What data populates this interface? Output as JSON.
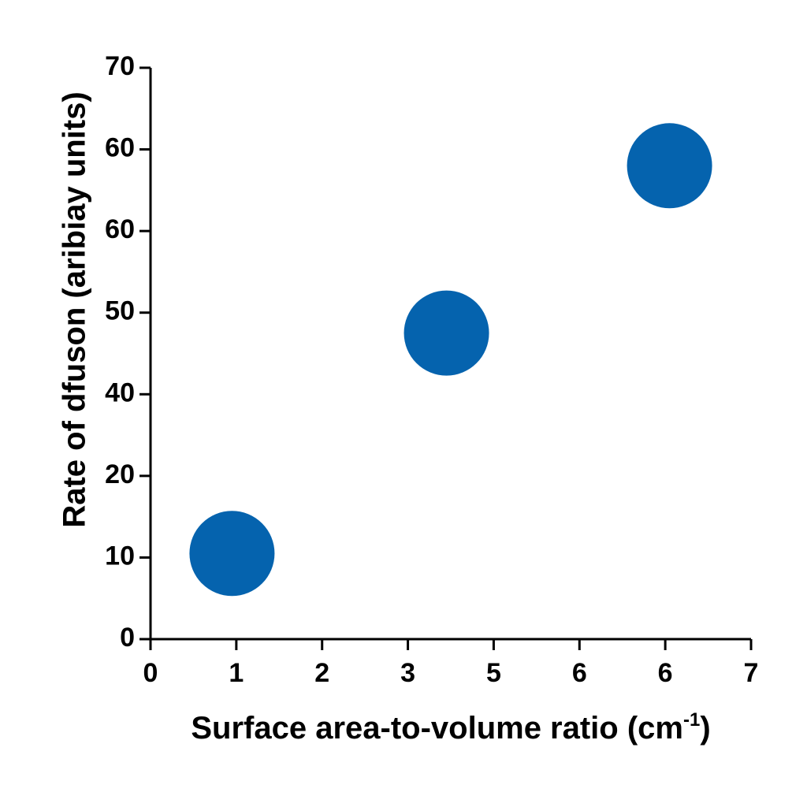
{
  "chart_data": {
    "type": "scatter",
    "title": "",
    "xlabel": "Surface area-to-volume ratio (cm",
    "xlabel_sup": "-1",
    "xlabel_end": ")",
    "ylabel": "Rate of dfuson (aribiay units)",
    "x_ticks": [
      "0",
      "1",
      "2",
      "3",
      "5",
      "6",
      "6",
      "7"
    ],
    "y_ticks": [
      "0",
      "10",
      "20",
      "40",
      "50",
      "60",
      "60",
      "70"
    ],
    "xlim": [
      0,
      7
    ],
    "ylim": [
      0,
      70
    ],
    "grid": false,
    "marker_color": "#0563AE",
    "series": [
      {
        "x": [
          0.95,
          3.45,
          6.05
        ],
        "y": [
          10.5,
          37.5,
          58
        ]
      }
    ]
  }
}
